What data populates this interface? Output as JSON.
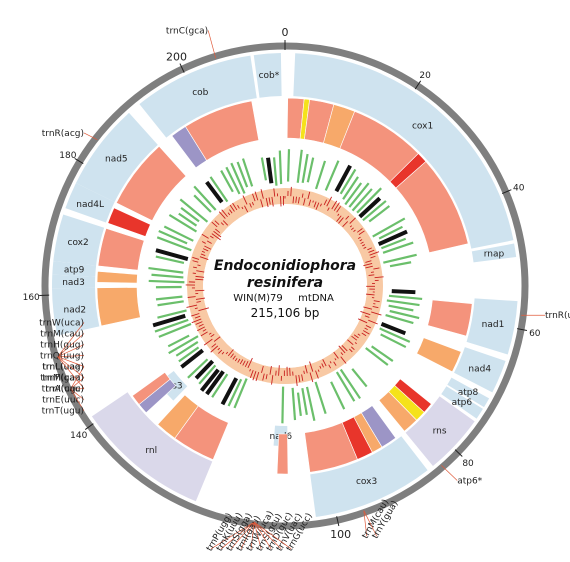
{
  "title": {
    "line1": "Endoconidiophora",
    "line2": "resinifera",
    "strain": "WIN(M)79",
    "type": "mtDNA",
    "size": "215,106 bp"
  },
  "genome": {
    "length_kb": 215.106
  },
  "colors": {
    "gene_box": "#cfe3ef",
    "rrna_box": "#dad8ea",
    "outer_ring": "#7f7f7f",
    "exon_salmon": "#f4937c",
    "exon_orange": "#f7a96a",
    "exon_red": "#e8352b",
    "exon_purple": "#9c95c6",
    "exon_yellow": "#f5e21b",
    "orf_green": "#6bbf6b",
    "orf_black": "#111111",
    "gc_fill": "#f8c9a4",
    "gc_line": "#c8201f",
    "trna_line": "#e05a3a"
  },
  "ticks": [
    {
      "kb": 0,
      "label": "0",
      "big": true
    },
    {
      "kb": 20,
      "label": "20",
      "big": false
    },
    {
      "kb": 40,
      "label": "40",
      "big": false
    },
    {
      "kb": 60,
      "label": "60",
      "big": false
    },
    {
      "kb": 80,
      "label": "80",
      "big": false
    },
    {
      "kb": 100,
      "label": "100",
      "big": true
    },
    {
      "kb": 140,
      "label": "140",
      "big": false
    },
    {
      "kb": 160,
      "label": "160",
      "big": false
    },
    {
      "kb": 180,
      "label": "180",
      "big": false
    },
    {
      "kb": 200,
      "label": "200",
      "big": true
    }
  ],
  "genes": [
    {
      "name": "cox1",
      "start": 1.5,
      "end": 47,
      "ring": "outer",
      "kind": "gene"
    },
    {
      "name": "rnap",
      "start": 47.5,
      "end": 49.5,
      "ring": "outer",
      "kind": "gene"
    },
    {
      "name": "nad1",
      "start": 56,
      "end": 64,
      "ring": "outer",
      "kind": "gene"
    },
    {
      "name": "nad4",
      "start": 65,
      "end": 70,
      "ring": "outer",
      "kind": "gene"
    },
    {
      "name": "atp8",
      "start": 71,
      "end": 72.5,
      "ring": "outer",
      "kind": "gene"
    },
    {
      "name": "atp6",
      "start": 72.8,
      "end": 74.5,
      "ring": "outer",
      "kind": "gene"
    },
    {
      "name": "rns",
      "start": 75,
      "end": 84,
      "ring": "outer",
      "kind": "rrna"
    },
    {
      "name": "cox3",
      "start": 85,
      "end": 103,
      "ring": "outer",
      "kind": "gene"
    },
    {
      "name": "nad6",
      "start": 107,
      "end": 110,
      "ring": "inner",
      "kind": "gene"
    },
    {
      "name": "rnl",
      "start": 121,
      "end": 141,
      "ring": "outer",
      "kind": "rrna"
    },
    {
      "name": "rps3",
      "start": 134,
      "end": 139,
      "ring": "inner",
      "kind": "gene"
    },
    {
      "name": "nad2",
      "start": 154,
      "end": 161,
      "ring": "outer",
      "kind": "gene"
    },
    {
      "name": "nad3",
      "start": 161,
      "end": 163,
      "ring": "outer",
      "kind": "gene"
    },
    {
      "name": "atp9",
      "start": 163,
      "end": 165,
      "ring": "outer",
      "kind": "gene"
    },
    {
      "name": "cox2",
      "start": 165,
      "end": 172,
      "ring": "outer",
      "kind": "gene"
    },
    {
      "name": "nad4L",
      "start": 173,
      "end": 177,
      "ring": "outer",
      "kind": "gene"
    },
    {
      "name": "nad5",
      "start": 177,
      "end": 190,
      "ring": "outer",
      "kind": "gene"
    },
    {
      "name": "cob",
      "start": 192,
      "end": 210,
      "ring": "outer",
      "kind": "gene"
    },
    {
      "name": "cob*",
      "start": 210.5,
      "end": 214.5,
      "ring": "outer",
      "kind": "gene"
    }
  ],
  "trnas": [
    {
      "pos": 58,
      "labels": [
        "trnR(ucu)"
      ],
      "side": "right"
    },
    {
      "pos": 83,
      "labels": [
        "atp6*"
      ],
      "side": "right"
    },
    {
      "pos": 96,
      "labels": [
        "trnM(cau)",
        "trnY(gua)"
      ],
      "side": "bottom"
    },
    {
      "pos": 112,
      "labels": [
        "trnP(ugg)",
        "trnK(uuu)",
        "trnS(gga)",
        "trnI(gau)",
        "trnW(uca)",
        "trnS(gcu)",
        "trnD(guc)",
        "trnV(uac)",
        "trnG(ucc)"
      ],
      "side": "bottom"
    },
    {
      "pos": 146,
      "labels": [
        "trnL(uaa)",
        "trnM(cau)",
        "trnI(cau)",
        "trnE(uuc)",
        "trnT(ugu)"
      ],
      "side": "left"
    },
    {
      "pos": 151,
      "labels": [
        "trnW(uca)",
        "trnM(cau)",
        "trnH(gug)",
        "trnQ(uug)",
        "trnL(uag)",
        "trnF(gaa)",
        "trnA(ugc)"
      ],
      "side": "left"
    },
    {
      "pos": 184,
      "labels": [
        "trnR(acg)"
      ],
      "side": "left"
    },
    {
      "pos": 205,
      "labels": [
        "trnC(gca)"
      ],
      "side": "top"
    }
  ],
  "exon_blocks": [
    {
      "start": 0.5,
      "end": 3.5,
      "color": "salmon"
    },
    {
      "start": 3.5,
      "end": 4.5,
      "color": "yellow"
    },
    {
      "start": 4.5,
      "end": 9,
      "color": "salmon"
    },
    {
      "start": 9,
      "end": 13,
      "color": "orange"
    },
    {
      "start": 13,
      "end": 27,
      "color": "salmon"
    },
    {
      "start": 27,
      "end": 29,
      "color": "red"
    },
    {
      "start": 29,
      "end": 46,
      "color": "salmon"
    },
    {
      "start": 57,
      "end": 63,
      "color": "salmon"
    },
    {
      "start": 66,
      "end": 70,
      "color": "orange"
    },
    {
      "start": 77,
      "end": 79,
      "color": "red"
    },
    {
      "start": 79,
      "end": 81,
      "color": "yellow"
    },
    {
      "start": 81,
      "end": 84,
      "color": "orange"
    },
    {
      "start": 86,
      "end": 89,
      "color": "purple"
    },
    {
      "start": 89,
      "end": 91,
      "color": "orange"
    },
    {
      "start": 91,
      "end": 94,
      "color": "red"
    },
    {
      "start": 94,
      "end": 103,
      "color": "salmon"
    },
    {
      "start": 107,
      "end": 109,
      "color": "salmon"
    },
    {
      "start": 121,
      "end": 129,
      "color": "salmon"
    },
    {
      "start": 129,
      "end": 133,
      "color": "orange"
    },
    {
      "start": 136,
      "end": 138,
      "color": "purple"
    },
    {
      "start": 138,
      "end": 140,
      "color": "salmon"
    },
    {
      "start": 154,
      "end": 161,
      "color": "orange"
    },
    {
      "start": 162,
      "end": 164,
      "color": "orange"
    },
    {
      "start": 165,
      "end": 172,
      "color": "salmon"
    },
    {
      "start": 173,
      "end": 176,
      "color": "red"
    },
    {
      "start": 177,
      "end": 190,
      "color": "salmon"
    },
    {
      "start": 193,
      "end": 196,
      "color": "purple"
    },
    {
      "start": 196,
      "end": 209,
      "color": "salmon"
    }
  ]
}
